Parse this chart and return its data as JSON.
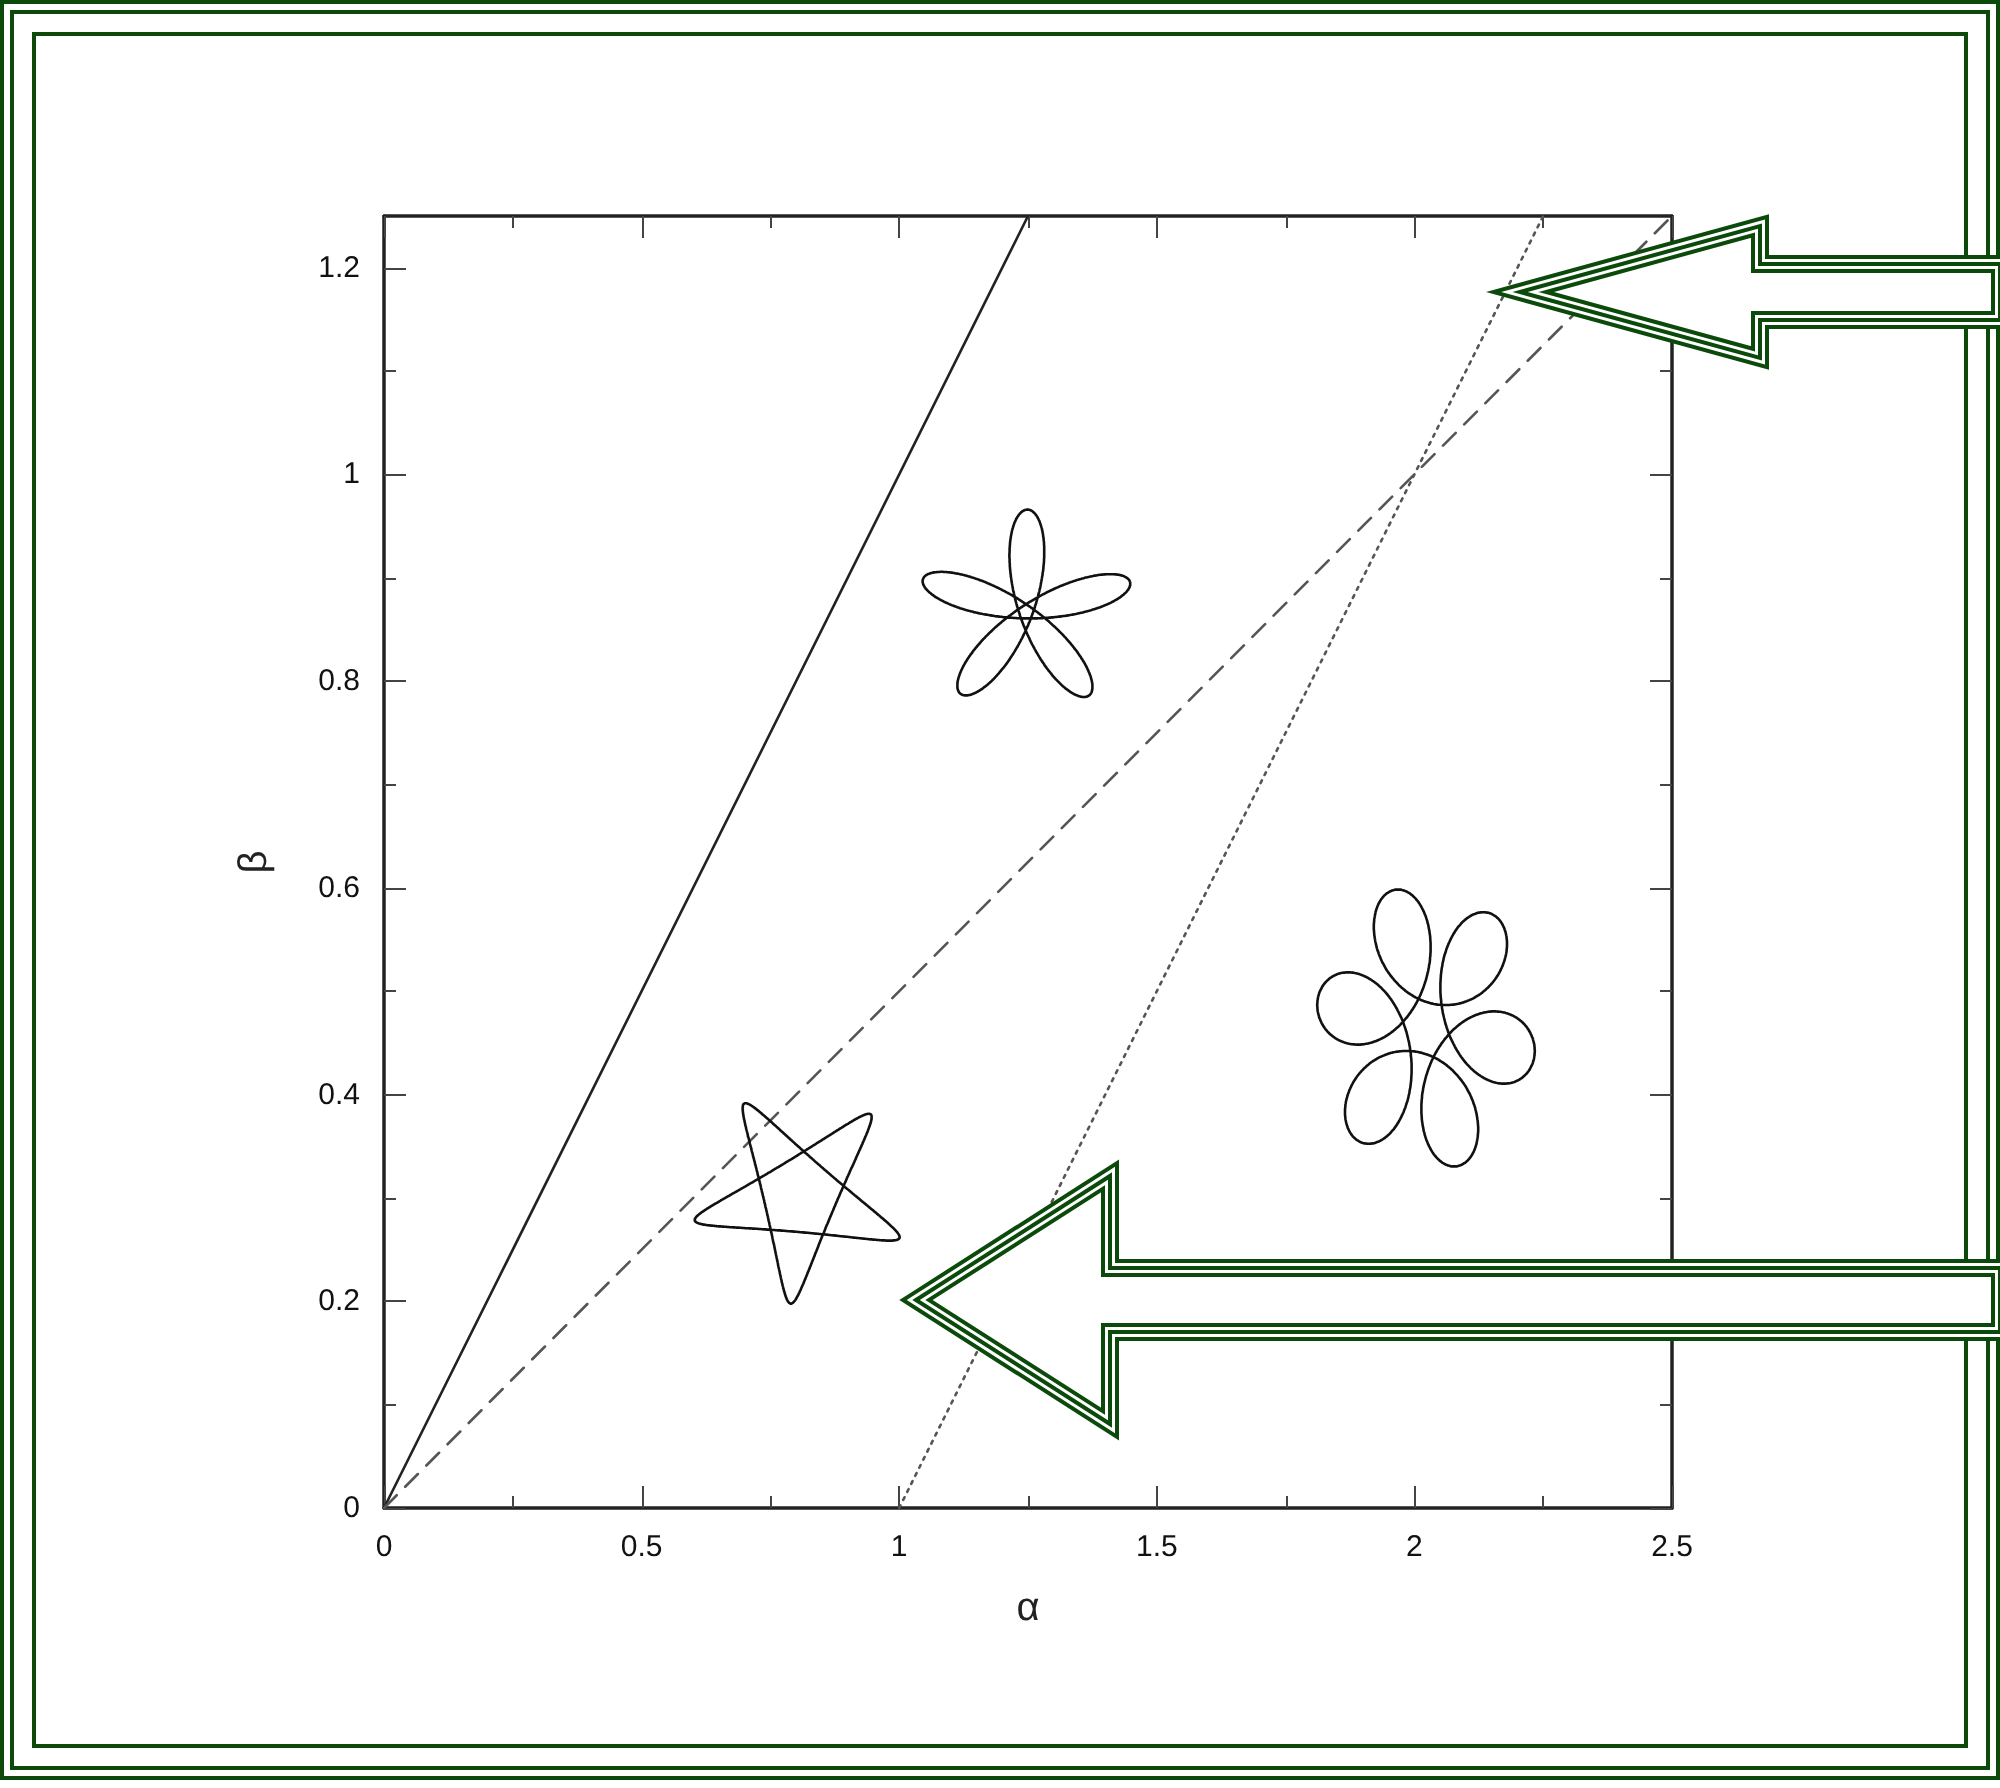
{
  "chart_data": {
    "type": "line",
    "xlabel": "α",
    "ylabel": "β",
    "series": [
      {
        "x": [
          0,
          1.25
        ],
        "values": [
          0,
          1.25
        ],
        "color": "#222222",
        "line_style": "solid"
      },
      {
        "x": [
          0,
          2.5
        ],
        "values": [
          0,
          1.25
        ],
        "color": "#555555",
        "line_style": "dashed"
      },
      {
        "x": [
          1,
          2.25
        ],
        "values": [
          0,
          1.25
        ],
        "color": "#555555",
        "line_style": "dotted"
      }
    ],
    "xlim": [
      0,
      2.5
    ],
    "xticks": [
      0,
      0.5,
      1,
      1.5,
      2,
      2.5
    ],
    "ylim": [
      0,
      1.25
    ],
    "yticks": [
      0,
      0.2,
      0.4,
      0.6,
      0.8,
      1,
      1.2
    ],
    "marker": "none"
  }
}
